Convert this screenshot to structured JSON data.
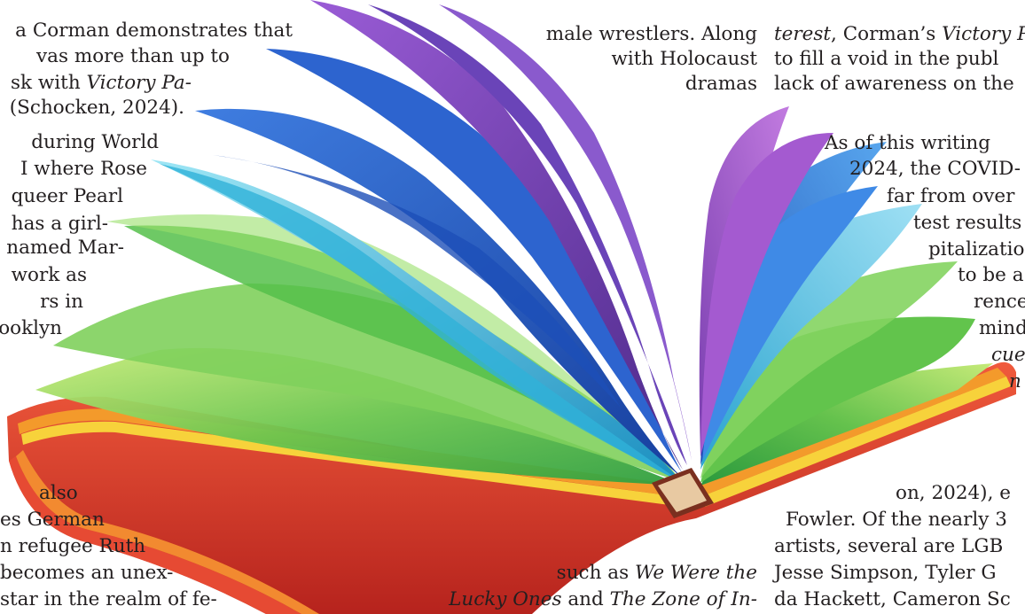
{
  "left_column": {
    "lines": [
      [
        "a Corman demonstrates that"
      ],
      [
        "vas more than up to"
      ],
      [
        "sk with ",
        "Victory Pa-"
      ],
      [
        "(Schocken, 2024)."
      ],
      [
        "during World"
      ],
      [
        "I where Rose"
      ],
      [
        "queer Pearl"
      ],
      [
        "has a girl-"
      ],
      [
        "named Mar-"
      ],
      [
        "work as"
      ],
      [
        "rs in"
      ],
      [
        "ooklyn"
      ],
      [
        "also"
      ],
      [
        "es German"
      ],
      [
        "n refugee Ruth"
      ],
      [
        "becomes an unex-"
      ],
      [
        "star in the realm of fe-"
      ]
    ]
  },
  "center_column": {
    "top_lines": [
      [
        "male wrestlers. Along"
      ],
      [
        "with Holocaust"
      ],
      [
        "dramas"
      ]
    ],
    "bottom_lines": [
      [
        "such as ",
        "We Were the"
      ],
      [
        "Lucky Ones",
        " and ",
        "The Zone of In-"
      ]
    ]
  },
  "right_column": {
    "lines": [
      [
        "terest",
        ", Corman’s ",
        "Victory P"
      ],
      [
        "to fill a void in the publ"
      ],
      [
        "lack of awareness on the"
      ],
      [
        "As of this writing"
      ],
      [
        "2024, the COVID-"
      ],
      [
        "far from over"
      ],
      [
        "test results"
      ],
      [
        "pitalizatio"
      ],
      [
        "to be a"
      ],
      [
        "rence."
      ],
      [
        "mind,"
      ],
      [
        "cue I"
      ],
      [
        "n"
      ],
      [
        "on, 2024), e"
      ],
      [
        "Fowler. Of the nearly 3"
      ],
      [
        "artists, several are LGB"
      ],
      [
        "Jesse Simpson, Tyler G"
      ],
      [
        "da Hackett, Cameron Sc"
      ]
    ]
  },
  "colors": {
    "text": "#231f20",
    "book_cover": "#d8332a",
    "page_edges": [
      "#e63b2e",
      "#f39a2b",
      "#f7d23b",
      "#57b947",
      "#1fa9c9",
      "#2a62c6",
      "#7b3fb0",
      "#b85fd0"
    ]
  }
}
